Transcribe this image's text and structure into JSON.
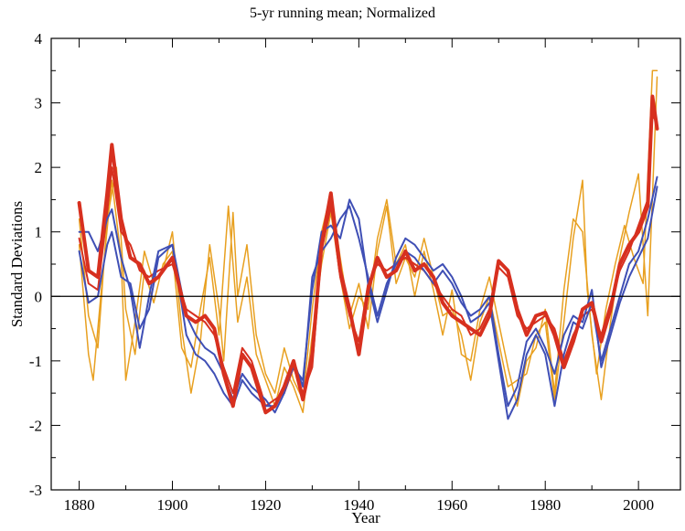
{
  "chart_data": {
    "type": "line",
    "title": "5-yr running mean; Normalized",
    "xlabel": "Year",
    "ylabel": "Standard Deviations",
    "xlim": [
      1874,
      2009
    ],
    "ylim": [
      -3,
      4
    ],
    "x_ticks": [
      1880,
      1900,
      1920,
      1940,
      1960,
      1980,
      2000
    ],
    "y_ticks": [
      -3,
      -2,
      -1,
      0,
      1,
      2,
      3,
      4
    ],
    "x_tick_labels": [
      "1880",
      "1900",
      "1920",
      "1940",
      "1960",
      "1980",
      "2000"
    ],
    "y_tick_labels": [
      "-3",
      "-2",
      "-1",
      "0",
      "1",
      "2",
      "3",
      "4"
    ],
    "zero_line": true,
    "grid": false,
    "colors": {
      "red": "#d7301f",
      "blue": "#3f4fb5",
      "orange": "#e8a020",
      "axis": "#000000"
    },
    "series": [
      {
        "color": "red",
        "width": 4,
        "x": [
          1880,
          1882,
          1884,
          1886,
          1887,
          1889,
          1891,
          1893,
          1895,
          1897,
          1900,
          1903,
          1905,
          1907,
          1909,
          1911,
          1913,
          1915,
          1917,
          1920,
          1922,
          1924,
          1926,
          1928,
          1930,
          1932,
          1934,
          1936,
          1938,
          1940,
          1942,
          1944,
          1946,
          1948,
          1950,
          1952,
          1954,
          1956,
          1958,
          1960,
          1962,
          1964,
          1966,
          1968,
          1970,
          1972,
          1974,
          1976,
          1978,
          1980,
          1982,
          1984,
          1986,
          1988,
          1990,
          1992,
          1994,
          1996,
          1998,
          2000,
          2002,
          2003,
          2004
        ],
        "y": [
          1.45,
          0.4,
          0.3,
          1.6,
          2.35,
          1.2,
          0.6,
          0.5,
          0.2,
          0.3,
          0.6,
          -0.3,
          -0.4,
          -0.3,
          -0.5,
          -1.2,
          -1.7,
          -0.9,
          -1.1,
          -1.8,
          -1.7,
          -1.4,
          -1.0,
          -1.6,
          -0.9,
          0.8,
          1.6,
          0.4,
          -0.2,
          -0.9,
          0.1,
          0.6,
          0.3,
          0.4,
          0.7,
          0.4,
          0.5,
          0.3,
          -0.1,
          -0.3,
          -0.4,
          -0.5,
          -0.6,
          -0.3,
          0.55,
          0.4,
          -0.2,
          -0.6,
          -0.3,
          -0.25,
          -0.6,
          -1.1,
          -0.7,
          -0.2,
          -0.1,
          -0.7,
          -0.2,
          0.5,
          0.8,
          1.0,
          1.4,
          3.1,
          2.6
        ]
      },
      {
        "color": "red",
        "width": 2,
        "x": [
          1880,
          1882,
          1884,
          1886,
          1887,
          1889,
          1891,
          1893,
          1895,
          1897,
          1900,
          1903,
          1905,
          1907,
          1909,
          1911,
          1913,
          1915,
          1917,
          1920,
          1922,
          1924,
          1926,
          1928,
          1930,
          1932,
          1934,
          1936,
          1938,
          1940,
          1942,
          1944,
          1946,
          1948,
          1950,
          1952,
          1954,
          1956,
          1958,
          1960,
          1962,
          1964,
          1966,
          1968,
          1970,
          1972,
          1974,
          1976,
          1978,
          1980,
          1982,
          1984,
          1986,
          1988,
          1990,
          1992,
          1994,
          1996,
          1998,
          2000,
          2002,
          2003,
          2004
        ],
        "y": [
          0.9,
          0.2,
          0.1,
          1.3,
          2.0,
          1.0,
          0.8,
          0.4,
          0.3,
          0.4,
          0.5,
          -0.2,
          -0.3,
          -0.4,
          -0.6,
          -1.1,
          -1.5,
          -0.8,
          -1.0,
          -1.7,
          -1.6,
          -1.5,
          -1.1,
          -1.5,
          -1.1,
          0.7,
          1.4,
          0.3,
          -0.3,
          -0.7,
          0.2,
          0.5,
          0.4,
          0.5,
          0.6,
          0.5,
          0.4,
          0.2,
          0.0,
          -0.2,
          -0.3,
          -0.6,
          -0.5,
          -0.2,
          0.45,
          0.3,
          -0.3,
          -0.5,
          -0.4,
          -0.3,
          -0.5,
          -1.0,
          -0.6,
          -0.3,
          -0.2,
          -0.6,
          -0.1,
          0.4,
          0.7,
          1.1,
          1.5,
          2.8,
          2.7
        ]
      },
      {
        "color": "blue",
        "width": 2,
        "x": [
          1880,
          1882,
          1884,
          1886,
          1887,
          1889,
          1891,
          1893,
          1895,
          1897,
          1900,
          1903,
          1905,
          1907,
          1909,
          1911,
          1913,
          1915,
          1917,
          1920,
          1922,
          1924,
          1926,
          1928,
          1930,
          1932,
          1934,
          1936,
          1938,
          1940,
          1942,
          1944,
          1946,
          1948,
          1950,
          1952,
          1954,
          1956,
          1958,
          1960,
          1962,
          1964,
          1966,
          1968,
          1970,
          1972,
          1974,
          1976,
          1978,
          1980,
          1982,
          1984,
          1986,
          1988,
          1990,
          1992,
          1994,
          1996,
          1998,
          2000,
          2002,
          2004
        ],
        "y": [
          0.7,
          -0.1,
          0.0,
          0.8,
          1.0,
          0.3,
          0.2,
          -0.5,
          -0.2,
          0.6,
          0.8,
          -0.3,
          -0.6,
          -0.8,
          -0.9,
          -1.2,
          -1.6,
          -1.2,
          -1.4,
          -1.6,
          -1.8,
          -1.5,
          -1.0,
          -1.4,
          0.3,
          0.7,
          0.9,
          1.2,
          1.4,
          0.9,
          0.3,
          -0.3,
          0.2,
          0.5,
          0.7,
          0.6,
          0.4,
          0.2,
          0.4,
          0.2,
          -0.1,
          -0.3,
          -0.2,
          0.0,
          -0.9,
          -1.7,
          -1.4,
          -0.7,
          -0.5,
          -0.8,
          -1.2,
          -0.6,
          -0.3,
          -0.4,
          0.1,
          -1.1,
          -0.6,
          -0.1,
          0.3,
          0.6,
          0.9,
          1.7
        ]
      },
      {
        "color": "blue",
        "width": 2,
        "x": [
          1880,
          1882,
          1884,
          1886,
          1887,
          1889,
          1891,
          1893,
          1895,
          1897,
          1900,
          1903,
          1905,
          1907,
          1909,
          1911,
          1913,
          1915,
          1917,
          1920,
          1922,
          1924,
          1926,
          1928,
          1930,
          1932,
          1934,
          1936,
          1938,
          1940,
          1942,
          1944,
          1946,
          1948,
          1950,
          1952,
          1954,
          1956,
          1958,
          1960,
          1962,
          1964,
          1966,
          1968,
          1970,
          1972,
          1974,
          1976,
          1978,
          1980,
          1982,
          1984,
          1986,
          1988,
          1990,
          1992,
          1994,
          1996,
          1998,
          2000,
          2002,
          2004
        ],
        "y": [
          1.0,
          1.0,
          0.7,
          1.2,
          1.35,
          0.6,
          0.1,
          -0.8,
          0.0,
          0.7,
          0.8,
          -0.6,
          -0.9,
          -1.0,
          -1.2,
          -1.5,
          -1.7,
          -1.3,
          -1.5,
          -1.7,
          -1.7,
          -1.4,
          -1.1,
          -1.3,
          0.1,
          1.0,
          1.1,
          0.9,
          1.5,
          1.2,
          0.2,
          -0.4,
          0.1,
          0.6,
          0.9,
          0.8,
          0.6,
          0.4,
          0.5,
          0.3,
          0.0,
          -0.4,
          -0.3,
          -0.1,
          -1.0,
          -1.9,
          -1.6,
          -0.9,
          -0.6,
          -0.9,
          -1.7,
          -0.9,
          -0.4,
          -0.5,
          -0.1,
          -1.0,
          -0.5,
          0.0,
          0.5,
          0.7,
          1.2,
          1.85
        ]
      },
      {
        "color": "orange",
        "width": 1.5,
        "x": [
          1880,
          1882,
          1883,
          1885,
          1887,
          1889,
          1890,
          1892,
          1894,
          1896,
          1898,
          1900,
          1902,
          1904,
          1906,
          1908,
          1910,
          1911,
          1913,
          1914,
          1916,
          1918,
          1920,
          1922,
          1924,
          1926,
          1928,
          1930,
          1932,
          1934,
          1936,
          1938,
          1940,
          1942,
          1944,
          1946,
          1948,
          1950,
          1952,
          1954,
          1956,
          1958,
          1960,
          1962,
          1964,
          1966,
          1968,
          1970,
          1972,
          1974,
          1976,
          1978,
          1980,
          1982,
          1984,
          1986,
          1988,
          1989,
          1991,
          1993,
          1995,
          1997,
          1999,
          2001,
          2003,
          2004
        ],
        "y": [
          0.8,
          -0.9,
          -1.3,
          0.3,
          1.8,
          0.6,
          -1.3,
          -0.4,
          0.7,
          0.2,
          0.4,
          1.0,
          -0.5,
          -1.5,
          -0.7,
          0.8,
          -0.2,
          -1.0,
          1.3,
          0.0,
          0.8,
          -0.6,
          -1.2,
          -1.5,
          -0.8,
          -1.3,
          -1.6,
          -0.2,
          1.0,
          1.6,
          0.6,
          -0.3,
          0.2,
          -0.5,
          0.7,
          1.4,
          0.2,
          0.6,
          0.3,
          0.9,
          0.3,
          -0.3,
          -0.2,
          -0.6,
          -1.3,
          -0.4,
          0.0,
          -0.7,
          -1.4,
          -1.3,
          -1.2,
          -0.6,
          -0.4,
          -1.6,
          -0.4,
          0.9,
          1.8,
          0.1,
          -1.2,
          -0.2,
          0.5,
          1.1,
          0.6,
          0.2,
          3.5,
          3.5
        ]
      },
      {
        "color": "orange",
        "width": 1.5,
        "x": [
          1880,
          1882,
          1884,
          1886,
          1888,
          1890,
          1892,
          1894,
          1896,
          1898,
          1900,
          1902,
          1904,
          1906,
          1908,
          1910,
          1912,
          1914,
          1916,
          1918,
          1920,
          1922,
          1924,
          1926,
          1928,
          1930,
          1932,
          1934,
          1936,
          1938,
          1940,
          1942,
          1944,
          1946,
          1948,
          1950,
          1952,
          1954,
          1956,
          1958,
          1960,
          1962,
          1964,
          1966,
          1968,
          1970,
          1972,
          1974,
          1976,
          1978,
          1980,
          1982,
          1984,
          1986,
          1988,
          1990,
          1992,
          1994,
          1996,
          1998,
          2000,
          2002,
          2004
        ],
        "y": [
          1.2,
          -0.3,
          -0.8,
          1.2,
          2.0,
          -0.2,
          -0.9,
          0.4,
          -0.1,
          0.5,
          0.7,
          -0.8,
          -1.1,
          -0.2,
          0.6,
          -0.6,
          1.4,
          -0.4,
          0.3,
          -0.9,
          -1.3,
          -1.7,
          -1.1,
          -1.4,
          -1.8,
          -0.6,
          0.5,
          1.3,
          0.3,
          -0.5,
          0.0,
          -0.2,
          0.9,
          1.5,
          0.5,
          0.8,
          0.0,
          0.7,
          0.1,
          -0.6,
          0.1,
          -0.9,
          -1.0,
          -0.2,
          0.3,
          -0.4,
          -1.1,
          -1.7,
          -1.0,
          -0.8,
          -0.2,
          -1.5,
          0.1,
          1.2,
          1.0,
          -0.6,
          -1.6,
          -0.4,
          0.6,
          1.3,
          1.9,
          -0.3,
          3.4
        ]
      }
    ]
  }
}
